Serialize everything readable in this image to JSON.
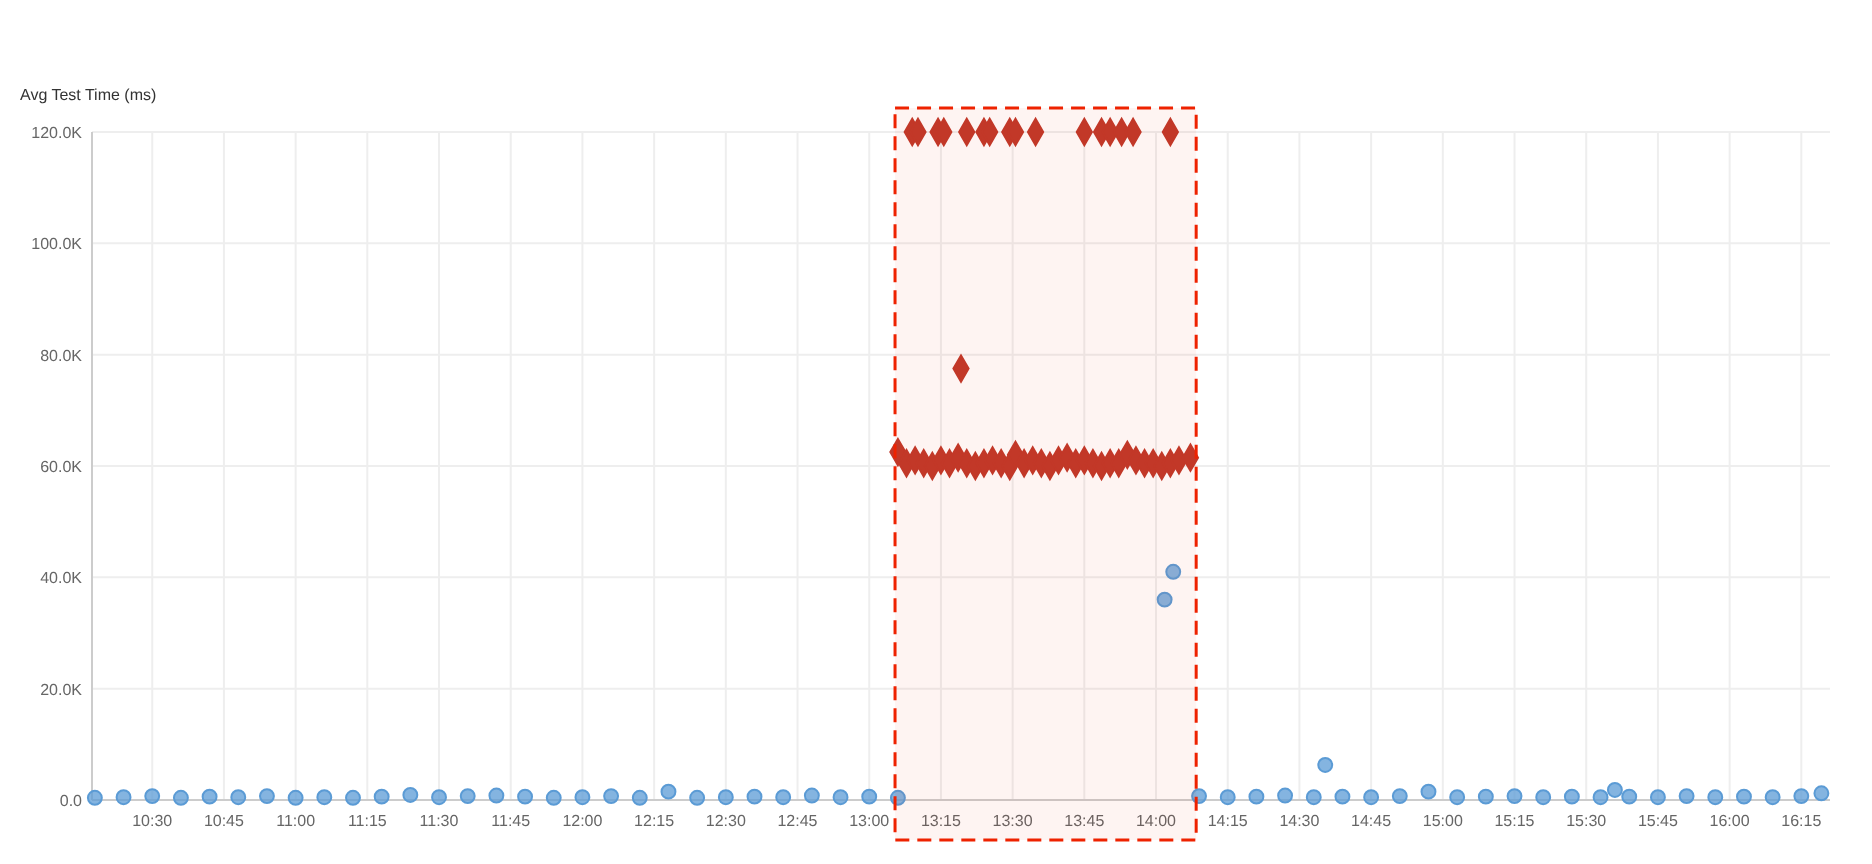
{
  "chart_data": {
    "type": "scatter",
    "ylabel": "Avg Test Time (ms)",
    "grid": true,
    "bands": [
      {
        "axis": "x",
        "from": 13.09,
        "to": 14.14,
        "color": "#ee2200"
      }
    ],
    "xlim": [
      10.29,
      16.35
    ],
    "ylim": [
      0,
      120000
    ],
    "xticks": [
      {
        "value": 10.5,
        "label": "10:30"
      },
      {
        "value": 10.75,
        "label": "10:45"
      },
      {
        "value": 11,
        "label": "11:00"
      },
      {
        "value": 11.25,
        "label": "11:15"
      },
      {
        "value": 11.5,
        "label": "11:30"
      },
      {
        "value": 11.75,
        "label": "11:45"
      },
      {
        "value": 12,
        "label": "12:00"
      },
      {
        "value": 12.25,
        "label": "12:15"
      },
      {
        "value": 12.5,
        "label": "12:30"
      },
      {
        "value": 12.75,
        "label": "12:45"
      },
      {
        "value": 13,
        "label": "13:00"
      },
      {
        "value": 13.25,
        "label": "13:15"
      },
      {
        "value": 13.5,
        "label": "13:30"
      },
      {
        "value": 13.75,
        "label": "13:45"
      },
      {
        "value": 14,
        "label": "14:00"
      },
      {
        "value": 14.25,
        "label": "14:15"
      },
      {
        "value": 14.5,
        "label": "14:30"
      },
      {
        "value": 14.75,
        "label": "14:45"
      },
      {
        "value": 15,
        "label": "15:00"
      },
      {
        "value": 15.25,
        "label": "15:15"
      },
      {
        "value": 15.5,
        "label": "15:30"
      },
      {
        "value": 15.75,
        "label": "15:45"
      },
      {
        "value": 16,
        "label": "16:00"
      },
      {
        "value": 16.25,
        "label": "16:15"
      }
    ],
    "yticks": [
      {
        "value": 0,
        "label": "0.0"
      },
      {
        "value": 20000,
        "label": "20.0K"
      },
      {
        "value": 40000,
        "label": "40.0K"
      },
      {
        "value": 60000,
        "label": "60.0K"
      },
      {
        "value": 80000,
        "label": "80.0K"
      },
      {
        "value": 100000,
        "label": "100.0K"
      },
      {
        "value": 120000,
        "label": "120.0K"
      }
    ],
    "series": [
      {
        "color": "#5b9bd5",
        "marker": "circle",
        "x": [
          10.3,
          10.4,
          10.5,
          10.6,
          10.7,
          10.8,
          10.9,
          11.0,
          11.1,
          11.2,
          11.3,
          11.4,
          11.5,
          11.6,
          11.7,
          11.8,
          11.9,
          12.0,
          12.1,
          12.2,
          12.3,
          12.4,
          12.5,
          12.6,
          12.7,
          12.8,
          12.9,
          13.0,
          13.1,
          14.03,
          14.06,
          14.15,
          14.25,
          14.35,
          14.45,
          14.55,
          14.59,
          14.65,
          14.75,
          14.85,
          14.95,
          15.05,
          15.15,
          15.25,
          15.35,
          15.45,
          15.55,
          15.6,
          15.65,
          15.75,
          15.85,
          15.95,
          16.05,
          16.15,
          16.25,
          16.32
        ],
        "values": [
          400,
          500,
          700,
          400,
          600,
          500,
          700,
          400,
          500,
          400,
          600,
          900,
          500,
          700,
          800,
          600,
          400,
          500,
          700,
          400,
          1500,
          400,
          500,
          600,
          500,
          800,
          500,
          600,
          400,
          36000,
          41000,
          700,
          500,
          600,
          800,
          500,
          6300,
          600,
          500,
          700,
          1500,
          500,
          600,
          700,
          500,
          600,
          500,
          1800,
          600,
          500,
          700,
          500,
          600,
          500,
          700,
          1200
        ]
      },
      {
        "color": "#c0392b",
        "marker": "diamond",
        "x": [
          13.1,
          13.13,
          13.16,
          13.19,
          13.22,
          13.25,
          13.28,
          13.31,
          13.34,
          13.37,
          13.4,
          13.43,
          13.46,
          13.49,
          13.51,
          13.54,
          13.57,
          13.6,
          13.63,
          13.66,
          13.69,
          13.72,
          13.75,
          13.78,
          13.81,
          13.84,
          13.87,
          13.9,
          13.93,
          13.96,
          13.99,
          14.02,
          14.05,
          14.08,
          14.12,
          13.15,
          13.17,
          13.24,
          13.26,
          13.34,
          13.4,
          13.42,
          13.49,
          13.51,
          13.58,
          13.75,
          13.81,
          13.84,
          13.88,
          13.92,
          14.05,
          13.32
        ],
        "values": [
          62500,
          60500,
          61000,
          60500,
          60000,
          61000,
          60500,
          61500,
          60500,
          60000,
          60500,
          61000,
          60500,
          60000,
          62000,
          60500,
          61000,
          60500,
          60000,
          61000,
          61500,
          60500,
          61000,
          60500,
          60000,
          60500,
          60500,
          62000,
          61000,
          60500,
          60500,
          60000,
          60500,
          61000,
          61500,
          120000,
          120000,
          120000,
          120000,
          120000,
          120000,
          120000,
          120000,
          120000,
          120000,
          120000,
          120000,
          120000,
          120000,
          120000,
          120000,
          77500
        ]
      }
    ]
  }
}
